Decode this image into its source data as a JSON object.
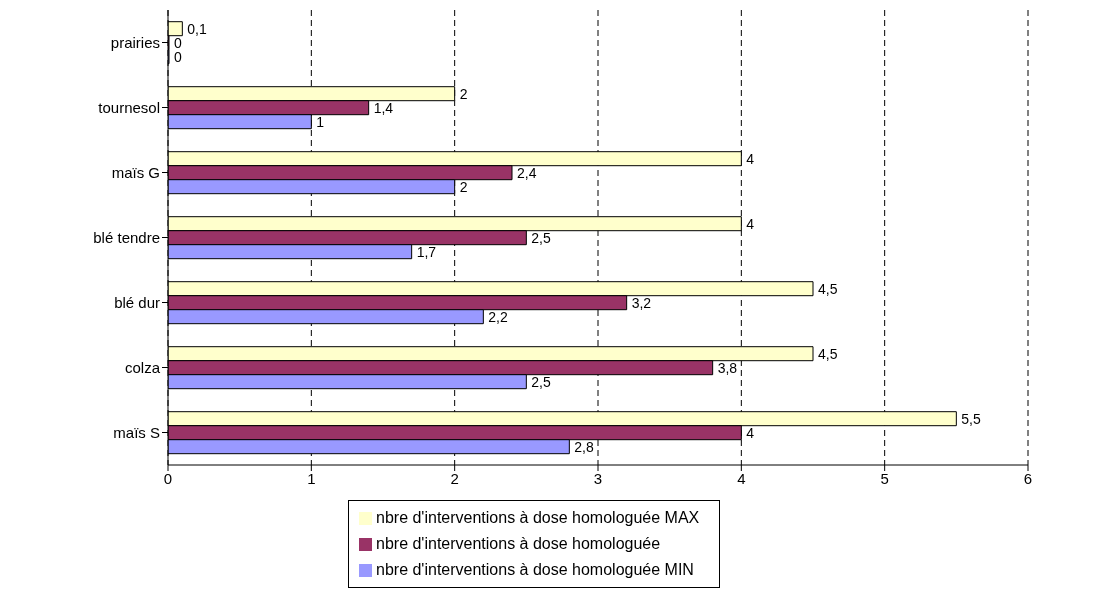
{
  "chart_data": {
    "type": "bar",
    "orientation": "horizontal",
    "categories": [
      "prairies",
      "tournesol",
      "maïs G",
      "blé tendre",
      "blé dur",
      "colza",
      "maïs S"
    ],
    "series": [
      {
        "name": "nbre d'interventions à dose homologuée MAX",
        "color": "#ffffcc",
        "values": [
          0.1,
          2,
          4,
          4,
          4.5,
          4.5,
          5.5
        ],
        "value_labels": [
          "0,1",
          "2",
          "4",
          "4",
          "4,5",
          "4,5",
          "5,5"
        ]
      },
      {
        "name": "nbre d'interventions à dose homologuée",
        "color": "#993366",
        "values": [
          0,
          1.4,
          2.4,
          2.5,
          3.2,
          3.8,
          4
        ],
        "value_labels": [
          "0",
          "1,4",
          "2,4",
          "2,5",
          "3,2",
          "3,8",
          "4"
        ]
      },
      {
        "name": "nbre d'interventions à dose homologuée MIN",
        "color": "#9999ff",
        "values": [
          0,
          1,
          2,
          1.7,
          2.2,
          2.5,
          2.8
        ],
        "value_labels": [
          "0",
          "1",
          "2",
          "1,7",
          "2,2",
          "2,5",
          "2,8"
        ]
      }
    ],
    "xlim": [
      0,
      6
    ],
    "xticks": [
      0,
      1,
      2,
      3,
      4,
      5,
      6
    ],
    "grid": "x",
    "legend": "bottom"
  }
}
